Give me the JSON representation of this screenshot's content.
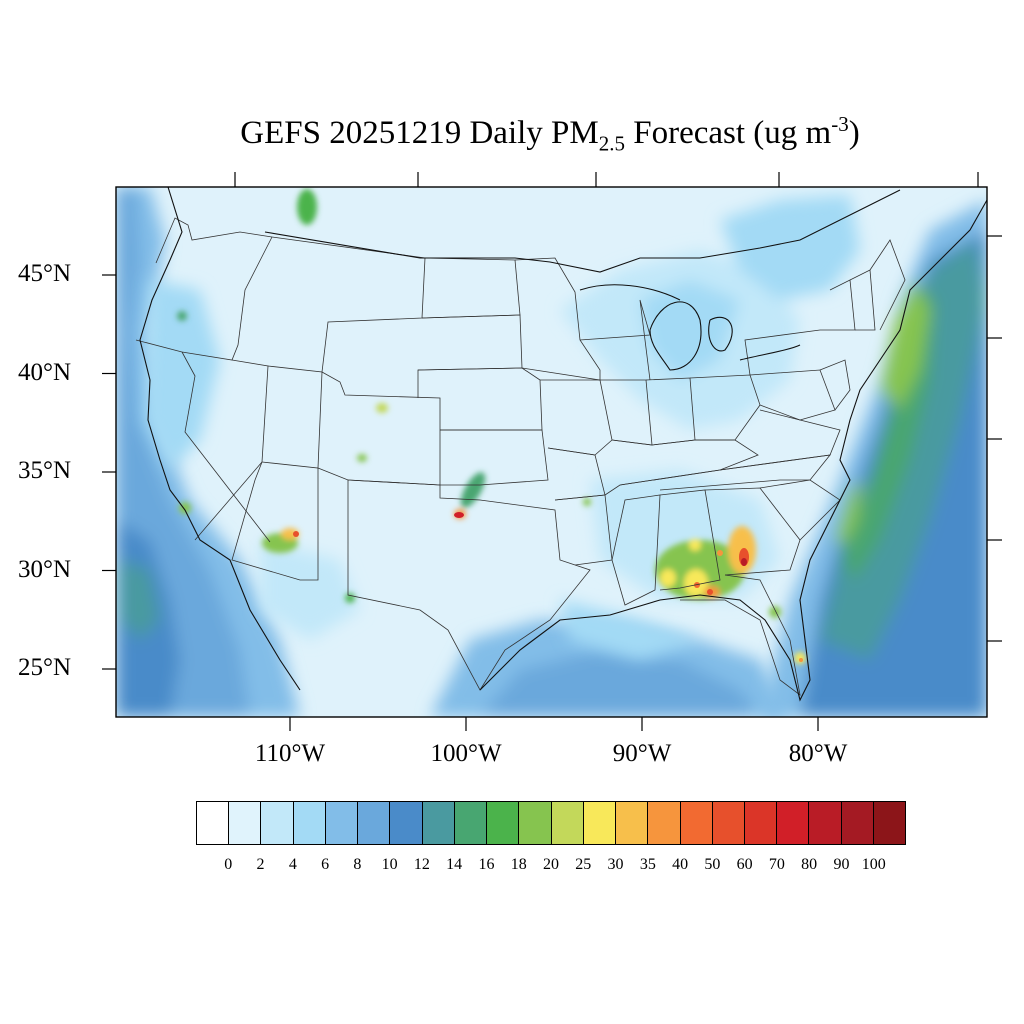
{
  "title": {
    "main": "GEFS 20251219 Daily PM",
    "subscript": "2.5",
    "after": " Forecast (ug m",
    "superscript": "-3",
    "close": ")"
  },
  "lat_labels": [
    "45°N",
    "40°N",
    "35°N",
    "30°N",
    "25°N"
  ],
  "lat_values": [
    45,
    40,
    35,
    30,
    25
  ],
  "lon_labels": [
    "110°W",
    "100°W",
    "90°W",
    "80°W"
  ],
  "lon_values": [
    -110,
    -100,
    -90,
    -80
  ],
  "colorbar": {
    "labels": [
      "0",
      "2",
      "4",
      "6",
      "8",
      "10",
      "12",
      "14",
      "16",
      "18",
      "20",
      "25",
      "30",
      "35",
      "40",
      "50",
      "60",
      "70",
      "80",
      "90",
      "100"
    ],
    "colors": [
      "#ffffff",
      "#e0f3fc",
      "#c2e8f9",
      "#a3daf5",
      "#82bde8",
      "#6aa8dc",
      "#4a8bc9",
      "#4a9aa0",
      "#48a671",
      "#4bb34b",
      "#86c44f",
      "#c3d85a",
      "#f8e85a",
      "#f7bf4b",
      "#f6953d",
      "#f26a31",
      "#e7502c",
      "#db3528",
      "#d11f28",
      "#b91c26",
      "#a41a23",
      "#8c1519"
    ]
  },
  "map": {
    "projection": "conus",
    "colors": {
      "background": "#dff2fb",
      "light": "#c2e8f9",
      "mid": "#a3daf5",
      "ocean": "#6aa8dc",
      "deep": "#4a8bc9",
      "teal": "#4a9aa0",
      "green": "#4bb34b",
      "lime": "#86c44f"
    }
  }
}
